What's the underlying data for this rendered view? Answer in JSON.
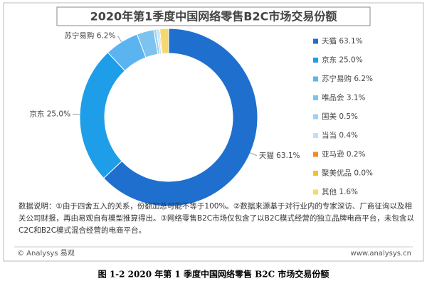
{
  "chart_data": {
    "type": "pie",
    "title": "2020年第1季度中国网络零售B2C市场交易份额",
    "categories": [
      "天猫",
      "京东",
      "苏宁易购",
      "唯品会",
      "国美",
      "当当",
      "亚马逊",
      "聚美优品",
      "其他"
    ],
    "values": [
      63.1,
      25.0,
      6.2,
      3.1,
      0.5,
      0.4,
      0.2,
      0.0,
      1.6
    ],
    "value_labels": [
      "63.1%",
      "25.0%",
      "6.2%",
      "3.1%",
      "0.5%",
      "0.4%",
      "0.2%",
      "0.0%",
      "1.6%"
    ],
    "colors": [
      "#1f6fcf",
      "#1e9ee8",
      "#5bb4f0",
      "#7cc3ef",
      "#9cd2f3",
      "#bde1f6",
      "#f08c1e",
      "#f2c12e",
      "#f5d86e"
    ],
    "note": "数据说明：①由于四舍五入的关系，份额加总可能不等于100%。②数据来源基于对行业内的专家深访、厂商征询以及相关公司财报，再由易观自有模型推算得出。③网络零售B2C市场仅包含了以B2C模式经营的独立品牌电商平台，未包含以C2C和B2C模式混合经营的电商平台。",
    "source_left": "© Analysys 易观",
    "source_right": "www.analysys.cn",
    "caption": "图 1-2 2020 年第 1 季度中国网络零售 B2C 市场交易份额"
  }
}
